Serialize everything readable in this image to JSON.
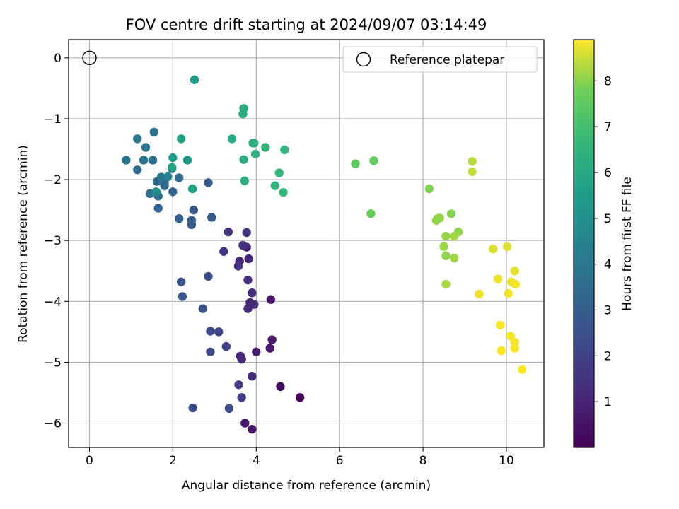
{
  "chart_data": {
    "type": "scatter",
    "title": "FOV centre drift starting at 2024/09/07 03:14:49",
    "xlabel": "Angular distance from reference (arcmin)",
    "ylabel": "Rotation from reference (arcmin)",
    "xlim": [
      -0.5,
      10.9
    ],
    "ylim": [
      -6.4,
      0.3
    ],
    "xticks": [
      0,
      2,
      4,
      6,
      8,
      10
    ],
    "yticks": [
      0,
      -1,
      -2,
      -3,
      -4,
      -5,
      -6
    ],
    "grid": true,
    "legend": {
      "placement": "top-right",
      "entries": [
        "Reference platepar"
      ]
    },
    "colorbar": {
      "label": "Hours from first FF file",
      "colormap": "viridis",
      "range": [
        0,
        8.9
      ],
      "ticks": [
        1,
        2,
        3,
        4,
        5,
        6,
        7,
        8
      ]
    },
    "reference_point": {
      "x": 0,
      "y": 0
    },
    "series": [
      {
        "x": [
          5.05,
          4.58,
          3.9,
          3.73,
          4.35,
          4.38,
          4.33,
          4.0,
          3.62,
          3.65,
          3.9,
          3.8,
          3.85,
          3.95,
          3.8,
          3.9,
          3.77,
          3.82,
          3.6,
          3.57,
          3.68,
          3.77,
          3.33,
          3.22,
          3.58,
          3.65,
          3.28,
          3.1,
          2.9,
          2.9,
          2.85,
          2.72,
          3.35,
          2.48,
          2.2,
          2.23,
          2.85,
          2.5,
          2.45,
          2.45,
          2.93,
          2.15,
          1.65,
          1.65,
          1.62,
          1.45,
          2.0,
          1.8,
          1.8,
          2.15,
          1.98,
          1.55,
          1.72,
          1.88,
          1.6,
          1.15,
          1.52,
          1.35,
          0.88,
          1.15,
          1.3,
          2.52,
          2.35,
          2.0,
          2.2,
          1.98,
          2.47,
          3.7,
          3.68,
          3.72,
          3.92,
          3.42,
          4.22,
          3.98,
          3.95,
          4.68,
          4.55,
          4.45,
          4.65,
          3.7,
          6.38,
          6.82,
          6.75,
          8.15,
          8.32,
          8.35,
          8.4,
          8.68,
          8.55,
          8.85,
          8.75,
          8.5,
          8.55,
          8.75,
          8.55,
          9.18,
          9.18,
          9.68,
          10.02,
          10.2,
          9.8,
          10.12,
          10.22,
          10.05,
          9.35,
          9.85,
          10.1,
          10.2,
          10.2,
          9.88,
          10.38
        ],
        "y": [
          -5.58,
          -5.4,
          -6.1,
          -6.0,
          -3.97,
          -4.63,
          -4.77,
          -4.83,
          -4.9,
          -4.95,
          -5.23,
          -4.12,
          -4.02,
          -4.05,
          -3.65,
          -3.86,
          -3.11,
          -3.3,
          -3.34,
          -3.42,
          -3.08,
          -2.87,
          -2.86,
          -3.18,
          -5.37,
          -5.58,
          -4.74,
          -4.5,
          -4.49,
          -4.83,
          -3.59,
          -4.12,
          -5.76,
          -5.75,
          -3.68,
          -3.92,
          -2.05,
          -2.5,
          -2.67,
          -2.74,
          -2.62,
          -2.64,
          -2.47,
          -2.27,
          -2.03,
          -2.23,
          -2.2,
          -2.04,
          -2.1,
          -1.97,
          -1.82,
          -1.22,
          -1.96,
          -1.95,
          -2.2,
          -1.84,
          -1.68,
          -1.47,
          -1.68,
          -1.33,
          -1.68,
          -0.36,
          -1.68,
          -1.64,
          -1.33,
          -1.8,
          -2.15,
          -0.83,
          -0.92,
          -2.02,
          -1.4,
          -1.33,
          -1.47,
          -1.58,
          -1.4,
          -1.51,
          -1.89,
          -2.1,
          -2.21,
          -1.67,
          -1.74,
          -1.69,
          -2.56,
          -2.15,
          -2.67,
          -2.64,
          -2.63,
          -2.56,
          -2.93,
          -2.86,
          -2.93,
          -3.1,
          -3.25,
          -3.29,
          -3.72,
          -1.7,
          -1.87,
          -3.14,
          -3.1,
          -3.5,
          -3.63,
          -3.68,
          -3.72,
          -3.87,
          -3.88,
          -4.39,
          -4.57,
          -4.67,
          -4.77,
          -4.81,
          -5.12
        ],
        "hours": [
          0.05,
          0.25,
          0.55,
          0.62,
          0.6,
          0.72,
          0.78,
          0.82,
          1.05,
          1.12,
          1.1,
          1.2,
          1.22,
          1.25,
          1.3,
          1.35,
          1.05,
          1.15,
          1.25,
          1.35,
          1.45,
          1.55,
          1.45,
          1.6,
          1.8,
          1.9,
          2.0,
          2.1,
          2.2,
          2.3,
          2.35,
          2.55,
          2.3,
          2.4,
          2.6,
          2.7,
          2.75,
          2.8,
          2.9,
          2.95,
          2.85,
          3.05,
          3.2,
          3.35,
          3.45,
          3.5,
          3.15,
          3.3,
          3.4,
          3.45,
          3.6,
          3.75,
          3.85,
          4.4,
          4.9,
          3.55,
          3.7,
          3.85,
          3.9,
          4.1,
          3.95,
          5.5,
          5.35,
          5.5,
          5.65,
          5.75,
          5.85,
          6.1,
          6.2,
          6.25,
          6.4,
          6.0,
          6.5,
          6.35,
          6.3,
          6.55,
          6.6,
          6.5,
          6.7,
          6.1,
          7.45,
          7.55,
          7.65,
          7.9,
          8.05,
          8.05,
          8.1,
          7.95,
          8.1,
          8.05,
          8.2,
          8.15,
          8.05,
          8.15,
          8.25,
          8.35,
          8.45,
          8.65,
          8.65,
          8.7,
          8.75,
          8.75,
          8.8,
          8.8,
          8.75,
          8.85,
          8.85,
          8.85,
          8.85,
          8.9,
          8.9
        ]
      }
    ]
  }
}
